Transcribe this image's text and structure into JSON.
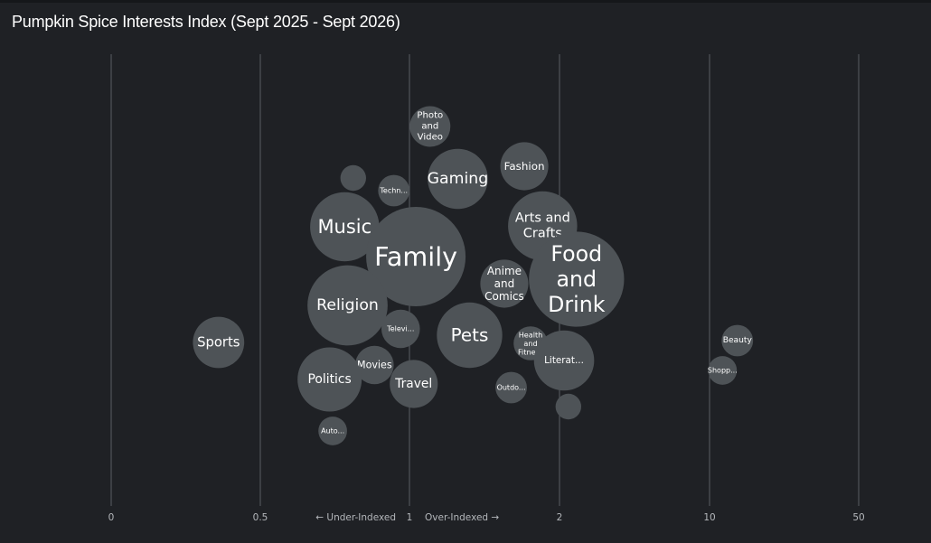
{
  "title": "Pumpkin Spice Interests Index (Sept 2025 - Sept 2026)",
  "colors": {
    "background": "#1f2125",
    "bubble": "#4e5357",
    "gridline": "#5a5d62",
    "tick_text": "#b4b7bb"
  },
  "chart_data": {
    "type": "scatter",
    "title": "Pumpkin Spice Interests Index (Sept 2025 - Sept 2026)",
    "x_scale": "index-log",
    "x_ticks": [
      "0",
      "0.5",
      "1",
      "2",
      "10",
      "50"
    ],
    "axis_annotations": {
      "under": "← Under-Indexed",
      "over": "Over-Indexed →"
    },
    "grid": true,
    "points": [
      {
        "label": "Photo and Video",
        "lines": [
          "Photo",
          "and",
          "Video"
        ],
        "x": 1.1,
        "size": 1.0
      },
      {
        "label": "Fashion",
        "lines": [
          "Fashion"
        ],
        "x": 1.7,
        "size": 1.4
      },
      {
        "label": "",
        "lines": [],
        "x": 0.77,
        "size": 0.4
      },
      {
        "label": "Techn...",
        "lines": [
          "Techn..."
        ],
        "x": 0.93,
        "size": 0.6
      },
      {
        "label": "Gaming",
        "lines": [
          "Gaming"
        ],
        "x": 1.25,
        "size": 2.2
      },
      {
        "label": "Music",
        "lines": [
          "Music"
        ],
        "x": 0.74,
        "size": 2.9
      },
      {
        "label": "Arts and Crafts",
        "lines": [
          "Arts and",
          "Crafts"
        ],
        "x": 1.85,
        "size": 2.9
      },
      {
        "label": "Family",
        "lines": [
          "Family"
        ],
        "x": 1.03,
        "size": 6.0
      },
      {
        "label": "Food and Drink",
        "lines": [
          "Food",
          "and",
          "Drink"
        ],
        "x": 2.4,
        "size": 5.5
      },
      {
        "label": "Anime and Comics",
        "lines": [
          "Anime",
          "and",
          "Comics"
        ],
        "x": 1.55,
        "size": 1.4
      },
      {
        "label": "Religion",
        "lines": [
          "Religion"
        ],
        "x": 0.75,
        "size": 3.9
      },
      {
        "label": "Televi...",
        "lines": [
          "Televi..."
        ],
        "x": 0.96,
        "size": 0.9
      },
      {
        "label": "Pets",
        "lines": [
          "Pets"
        ],
        "x": 1.32,
        "size": 2.6
      },
      {
        "label": "Health and Fitness",
        "lines": [
          "Health",
          "and",
          "Fitness"
        ],
        "x": 1.75,
        "size": 0.7
      },
      {
        "label": "Sports",
        "lines": [
          "Sports"
        ],
        "x": 0.36,
        "size": 1.6
      },
      {
        "label": "Movies",
        "lines": [
          "Movies"
        ],
        "x": 0.85,
        "size": 0.9
      },
      {
        "label": "Literat...",
        "lines": [
          "Literat..."
        ],
        "x": 2.1,
        "size": 2.2
      },
      {
        "label": "Beauty",
        "lines": [
          "Beauty"
        ],
        "x": 13.5,
        "size": 0.6
      },
      {
        "label": "Shopp...",
        "lines": [
          "Shopp..."
        ],
        "x": 11.5,
        "size": 0.5
      },
      {
        "label": "Politics",
        "lines": [
          "Politics"
        ],
        "x": 0.69,
        "size": 2.5
      },
      {
        "label": "Travel",
        "lines": [
          "Travel"
        ],
        "x": 1.02,
        "size": 1.4
      },
      {
        "label": "Outdo...",
        "lines": [
          "Outdo..."
        ],
        "x": 1.6,
        "size": 0.6
      },
      {
        "label": "",
        "lines": [],
        "x": 2.2,
        "size": 0.4
      },
      {
        "label": "Auto...",
        "lines": [
          "Auto..."
        ],
        "x": 0.7,
        "size": 0.5
      }
    ]
  }
}
